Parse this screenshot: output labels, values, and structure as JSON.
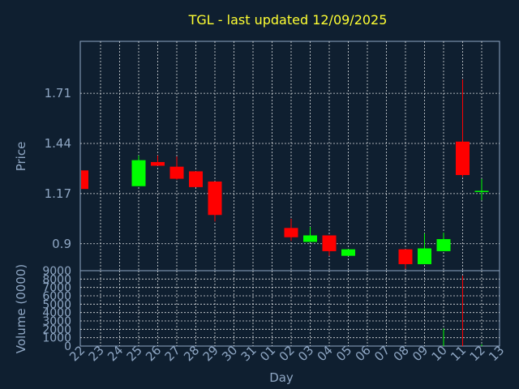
{
  "chart_data": [
    {
      "type": "candlestick",
      "title": "TGL - last updated 12/09/2025",
      "ylabel": "Price",
      "ylim": [
        0.755,
        1.99
      ],
      "yticks": [
        {
          "value": 0.9,
          "label": "0.9"
        },
        {
          "value": 1.17,
          "label": "1.17"
        },
        {
          "value": 1.44,
          "label": "1.44"
        },
        {
          "value": 1.71,
          "label": "1.71"
        }
      ],
      "grid": true,
      "up_color": "#00ff00",
      "down_color": "#ff0000",
      "candles": [
        {
          "day": "22",
          "open": 1.295,
          "high": 1.295,
          "low": 1.195,
          "close": 1.195
        },
        {
          "day": "25",
          "open": 1.21,
          "high": 1.375,
          "low": 1.21,
          "close": 1.35
        },
        {
          "day": "26",
          "open": 1.34,
          "high": 1.375,
          "low": 1.32,
          "close": 1.32
        },
        {
          "day": "27",
          "open": 1.315,
          "high": 1.37,
          "low": 1.245,
          "close": 1.25
        },
        {
          "day": "28",
          "open": 1.29,
          "high": 1.29,
          "low": 1.205,
          "close": 1.205
        },
        {
          "day": "29",
          "open": 1.235,
          "high": 1.235,
          "low": 1.02,
          "close": 1.055
        },
        {
          "day": "02",
          "open": 0.985,
          "high": 1.035,
          "low": 0.915,
          "close": 0.935
        },
        {
          "day": "03",
          "open": 0.91,
          "high": 0.99,
          "low": 0.91,
          "close": 0.945
        },
        {
          "day": "04",
          "open": 0.945,
          "high": 0.945,
          "low": 0.835,
          "close": 0.86
        },
        {
          "day": "05",
          "open": 0.835,
          "high": 0.87,
          "low": 0.835,
          "close": 0.87
        },
        {
          "day": "08",
          "open": 0.87,
          "high": 0.87,
          "low": 0.765,
          "close": 0.79
        },
        {
          "day": "09",
          "open": 0.79,
          "high": 0.955,
          "low": 0.79,
          "close": 0.875
        },
        {
          "day": "10",
          "open": 0.86,
          "high": 0.96,
          "low": 0.86,
          "close": 0.925
        },
        {
          "day": "11",
          "open": 1.45,
          "high": 1.785,
          "low": 1.26,
          "close": 1.27
        },
        {
          "day": "12",
          "open": 1.18,
          "high": 1.25,
          "low": 1.135,
          "close": 1.185
        }
      ]
    },
    {
      "type": "bar",
      "ylabel": "Volume (0000)",
      "xlabel": "Day",
      "ylim": [
        0,
        9000
      ],
      "yticks": [
        "0",
        "1000",
        "2000",
        "3000",
        "4000",
        "5000",
        "6000",
        "7000",
        "8000",
        "9000"
      ],
      "xticks": [
        "22",
        "23",
        "24",
        "25",
        "26",
        "27",
        "28",
        "29",
        "30",
        "31",
        "01",
        "02",
        "03",
        "04",
        "05",
        "06",
        "07",
        "08",
        "09",
        "10",
        "11",
        "12",
        "13"
      ],
      "bars": [
        {
          "day": "10",
          "value": 2100,
          "color": "#00ff00"
        },
        {
          "day": "11",
          "value": 8400,
          "color": "#ff0000"
        },
        {
          "day": "12",
          "value": 200,
          "color": "#00ff00"
        }
      ]
    }
  ]
}
